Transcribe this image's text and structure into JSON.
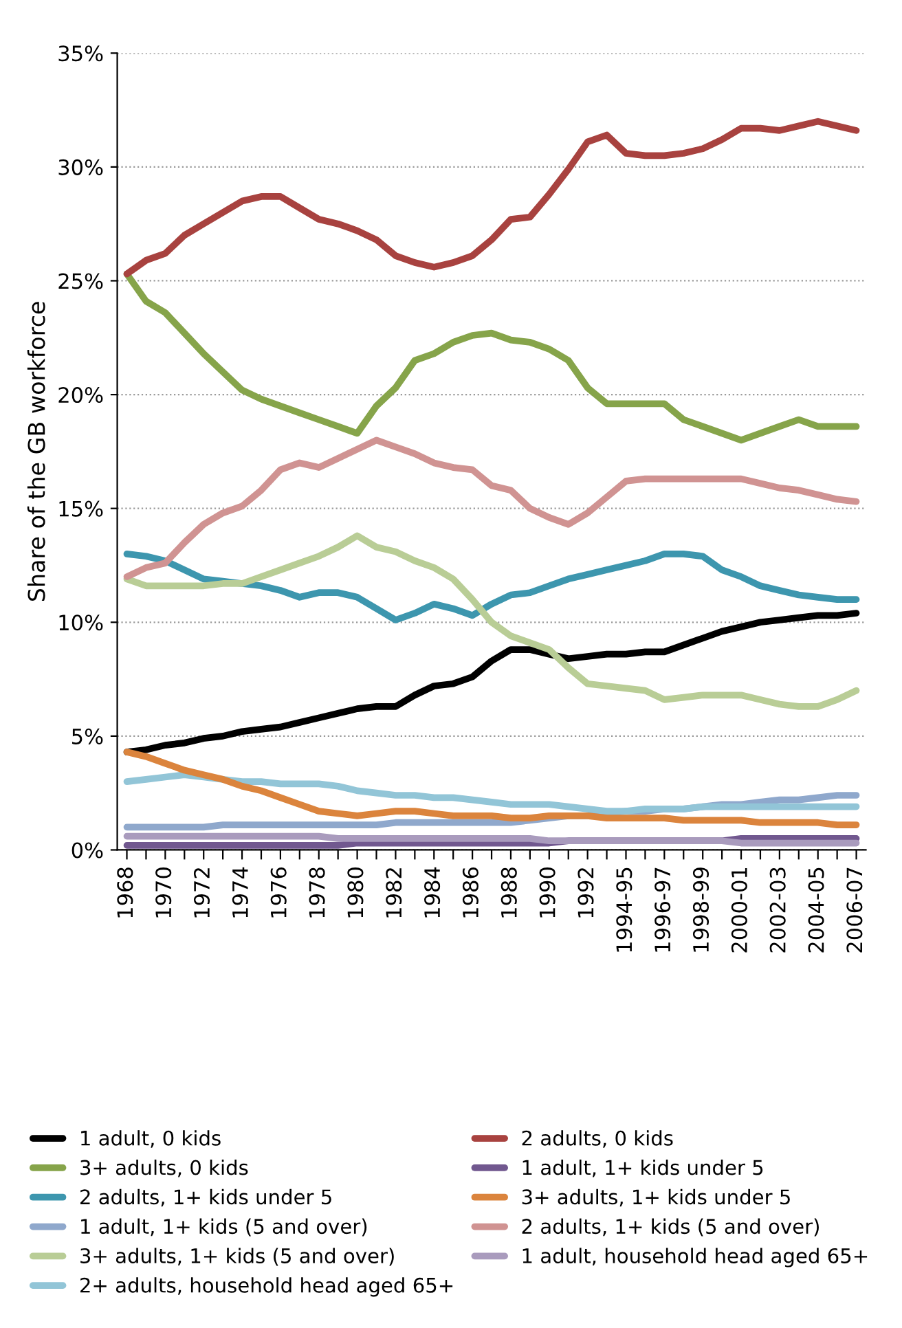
{
  "chart_data": {
    "type": "line",
    "ylabel": "Share of the GB workforce",
    "categories": [
      "1968",
      null,
      "1970",
      null,
      "1972",
      null,
      "1974",
      null,
      "1976",
      null,
      "1978",
      null,
      "1980",
      null,
      "1982",
      null,
      "1984",
      null,
      "1986",
      null,
      "1988",
      null,
      "1990",
      null,
      "1992",
      null,
      "1994-95",
      null,
      "1996-97",
      null,
      "1998-99",
      null,
      "2000-01",
      null,
      "2002-03",
      null,
      "2004-05",
      null,
      "2006-07"
    ],
    "series": [
      {
        "name": "1 adult, 0 kids",
        "color": "#000000",
        "values": [
          4.3,
          4.4,
          4.6,
          4.7,
          4.9,
          5.0,
          5.2,
          5.3,
          5.4,
          5.6,
          5.8,
          6.0,
          6.2,
          6.3,
          6.3,
          6.8,
          7.2,
          7.3,
          7.6,
          8.3,
          8.8,
          8.8,
          8.6,
          8.4,
          8.5,
          8.6,
          8.6,
          8.7,
          8.7,
          9.0,
          9.3,
          9.6,
          9.8,
          10.0,
          10.1,
          10.2,
          10.3,
          10.3,
          10.4
        ]
      },
      {
        "name": "3+ adults, 0 kids",
        "color": "#86a44a",
        "values": [
          25.3,
          24.1,
          23.6,
          22.7,
          21.8,
          21.0,
          20.2,
          19.8,
          19.5,
          19.2,
          18.9,
          18.6,
          18.3,
          19.5,
          20.3,
          21.5,
          21.8,
          22.3,
          22.6,
          22.7,
          22.4,
          22.3,
          22.0,
          21.5,
          20.3,
          19.6,
          19.6,
          19.6,
          19.6,
          18.9,
          18.6,
          18.3,
          18.0,
          18.3,
          18.6,
          18.9,
          18.6,
          18.6,
          18.6
        ]
      },
      {
        "name": "2 adults, 1+ kids under 5",
        "color": "#3d96ae",
        "values": [
          13.0,
          12.9,
          12.7,
          12.3,
          11.9,
          11.8,
          11.7,
          11.6,
          11.4,
          11.1,
          11.3,
          11.3,
          11.1,
          10.6,
          10.1,
          10.4,
          10.8,
          10.6,
          10.3,
          10.8,
          11.2,
          11.3,
          11.6,
          11.9,
          12.1,
          12.3,
          12.5,
          12.7,
          13.0,
          13.0,
          12.9,
          12.3,
          12.0,
          11.6,
          11.4,
          11.2,
          11.1,
          11.0,
          11.0
        ]
      },
      {
        "name": "1 adult, 1+ kids (5 and over)",
        "color": "#8fa8cc",
        "values": [
          1.0,
          1.0,
          1.0,
          1.0,
          1.0,
          1.1,
          1.1,
          1.1,
          1.1,
          1.1,
          1.1,
          1.1,
          1.1,
          1.1,
          1.2,
          1.2,
          1.2,
          1.2,
          1.2,
          1.2,
          1.2,
          1.3,
          1.4,
          1.5,
          1.5,
          1.6,
          1.7,
          1.7,
          1.8,
          1.8,
          1.9,
          2.0,
          2.0,
          2.1,
          2.2,
          2.2,
          2.3,
          2.4,
          2.4
        ]
      },
      {
        "name": "3+ adults, 1+ kids (5 and over)",
        "color": "#b9cd96",
        "values": [
          11.9,
          11.6,
          11.6,
          11.6,
          11.6,
          11.7,
          11.7,
          12.0,
          12.3,
          12.6,
          12.9,
          13.3,
          13.8,
          13.3,
          13.1,
          12.7,
          12.4,
          11.9,
          11.0,
          10.0,
          9.4,
          9.1,
          8.8,
          8.0,
          7.3,
          7.2,
          7.1,
          7.0,
          6.6,
          6.7,
          6.8,
          6.8,
          6.8,
          6.6,
          6.4,
          6.3,
          6.3,
          6.6,
          7.0
        ]
      },
      {
        "name": "2+ adults, household head aged 65+",
        "color": "#92c5d7",
        "values": [
          3.0,
          3.1,
          3.2,
          3.3,
          3.2,
          3.1,
          3.0,
          3.0,
          2.9,
          2.9,
          2.9,
          2.8,
          2.6,
          2.5,
          2.4,
          2.4,
          2.3,
          2.3,
          2.2,
          2.1,
          2.0,
          2.0,
          2.0,
          1.9,
          1.8,
          1.7,
          1.7,
          1.8,
          1.8,
          1.8,
          1.9,
          1.9,
          1.9,
          1.9,
          1.9,
          1.9,
          1.9,
          1.9,
          1.9
        ]
      },
      {
        "name": "2 adults, 0 kids",
        "color": "#a8423f",
        "values": [
          25.3,
          25.9,
          26.2,
          27.0,
          27.5,
          28.0,
          28.5,
          28.7,
          28.7,
          28.2,
          27.7,
          27.5,
          27.2,
          26.8,
          26.1,
          25.8,
          25.6,
          25.8,
          26.1,
          26.8,
          27.7,
          27.8,
          28.8,
          29.9,
          31.1,
          31.4,
          30.6,
          30.5,
          30.5,
          30.6,
          30.8,
          31.2,
          31.7,
          31.7,
          31.6,
          31.8,
          32.0,
          31.8,
          31.6
        ]
      },
      {
        "name": "1 adult, 1+ kids under 5",
        "color": "#71588f",
        "values": [
          0.2,
          0.2,
          0.2,
          0.2,
          0.2,
          0.2,
          0.2,
          0.2,
          0.2,
          0.2,
          0.2,
          0.2,
          0.3,
          0.3,
          0.3,
          0.3,
          0.3,
          0.3,
          0.3,
          0.3,
          0.3,
          0.3,
          0.3,
          0.4,
          0.4,
          0.4,
          0.4,
          0.4,
          0.4,
          0.4,
          0.4,
          0.4,
          0.5,
          0.5,
          0.5,
          0.5,
          0.5,
          0.5,
          0.5
        ]
      },
      {
        "name": "3+ adults, 1+ kids under 5",
        "color": "#db843d",
        "values": [
          4.3,
          4.1,
          3.8,
          3.5,
          3.3,
          3.1,
          2.8,
          2.6,
          2.3,
          2.0,
          1.7,
          1.6,
          1.5,
          1.6,
          1.7,
          1.7,
          1.6,
          1.5,
          1.5,
          1.5,
          1.4,
          1.4,
          1.5,
          1.5,
          1.5,
          1.4,
          1.4,
          1.4,
          1.4,
          1.3,
          1.3,
          1.3,
          1.3,
          1.2,
          1.2,
          1.2,
          1.2,
          1.1,
          1.1
        ]
      },
      {
        "name": "2 adults, 1+ kids (5 and over)",
        "color": "#d09392",
        "values": [
          12.0,
          12.4,
          12.6,
          13.5,
          14.3,
          14.8,
          15.1,
          15.8,
          16.7,
          17.0,
          16.8,
          17.2,
          17.6,
          18.0,
          17.7,
          17.4,
          17.0,
          16.8,
          16.7,
          16.0,
          15.8,
          15.0,
          14.6,
          14.3,
          14.8,
          15.5,
          16.2,
          16.3,
          16.3,
          16.3,
          16.3,
          16.3,
          16.3,
          16.1,
          15.9,
          15.8,
          15.6,
          15.4,
          15.3
        ]
      },
      {
        "name": "1 adult, household head aged 65+",
        "color": "#a99bbd",
        "values": [
          0.6,
          0.6,
          0.6,
          0.6,
          0.6,
          0.6,
          0.6,
          0.6,
          0.6,
          0.6,
          0.6,
          0.5,
          0.5,
          0.5,
          0.5,
          0.5,
          0.5,
          0.5,
          0.5,
          0.5,
          0.5,
          0.5,
          0.4,
          0.4,
          0.4,
          0.4,
          0.4,
          0.4,
          0.4,
          0.4,
          0.4,
          0.4,
          0.3,
          0.3,
          0.3,
          0.3,
          0.3,
          0.3,
          0.3
        ]
      }
    ],
    "ylim": [
      0,
      35
    ],
    "yticks": [
      {
        "value": 0,
        "label": "0%"
      },
      {
        "value": 5,
        "label": "5%"
      },
      {
        "value": 10,
        "label": "10%"
      },
      {
        "value": 15,
        "label": "15%"
      },
      {
        "value": 20,
        "label": "20%"
      },
      {
        "value": 25,
        "label": "25%"
      },
      {
        "value": 30,
        "label": "30%"
      },
      {
        "value": 35,
        "label": "35%"
      }
    ],
    "grid": "y",
    "legend": "bottom",
    "marker": "none",
    "line_style": "solid"
  }
}
